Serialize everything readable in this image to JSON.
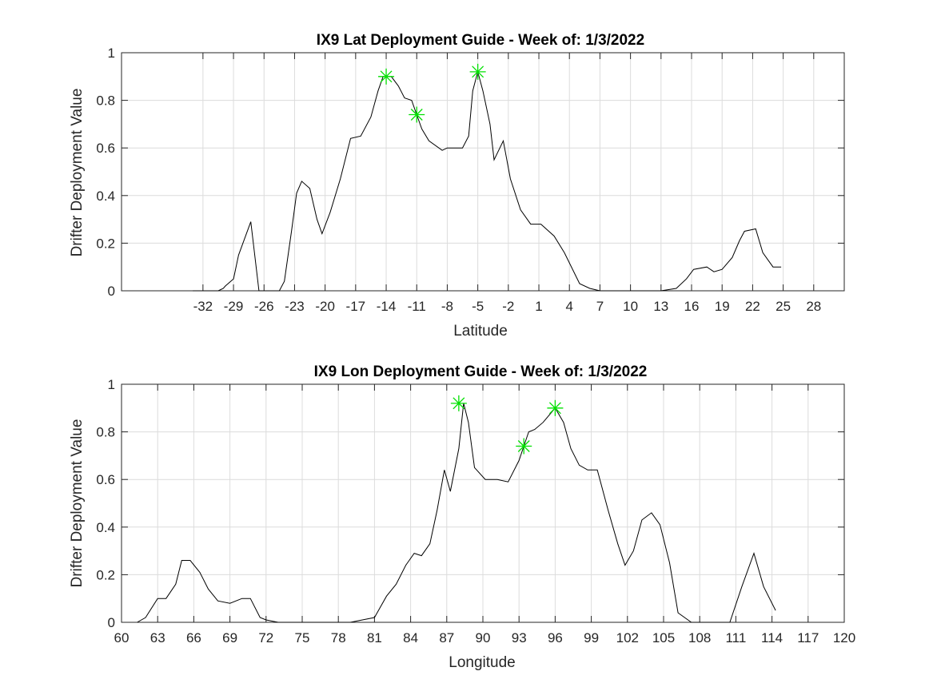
{
  "chart_data": [
    {
      "type": "line",
      "title": "IX9 Lat Deployment Guide - Week of: 1/3/2022",
      "xlabel": "Latitude",
      "ylabel": "Drifter Deployment Value",
      "xlim": [
        -40,
        31
      ],
      "ylim": [
        0,
        1
      ],
      "xticks": [
        -32,
        -29,
        -26,
        -23,
        -20,
        -17,
        -14,
        -11,
        -8,
        -5,
        -2,
        1,
        4,
        7,
        10,
        13,
        16,
        19,
        22,
        25,
        28
      ],
      "xtick_labels": [
        "-32",
        "-29",
        "-26",
        "-23",
        "-20",
        "-17",
        "-14",
        "-11",
        "-8",
        "-5",
        "-2",
        "1",
        "4",
        "7",
        "10",
        "13",
        "16",
        "19",
        "22",
        "25",
        "28"
      ],
      "yticks": [
        0,
        0.2,
        0.4,
        0.6,
        0.8,
        1
      ],
      "ytick_labels": [
        "0",
        "0.2",
        "0.4",
        "0.6",
        "0.8",
        "1"
      ],
      "grid": true,
      "series": [
        {
          "color": "#000000",
          "x": [
            -33,
            -30.5,
            -30,
            -29.8,
            -29,
            -28.5,
            -27.3,
            -26.5,
            -25.5,
            -24.5,
            -24,
            -23.3,
            -22.8,
            -22.3,
            -21.5,
            -20.8,
            -20.3,
            -19.5,
            -18.5,
            -17.5,
            -16.5,
            -15.5,
            -14.8,
            -14.3,
            -13.5,
            -12.8,
            -12.2,
            -11.5,
            -11,
            -10.5,
            -9.8,
            -8.5,
            -8,
            -7.3,
            -6.5,
            -5.9,
            -5.5,
            -5,
            -4.5,
            -3.8,
            -3.4,
            -2.5,
            -1.8,
            -0.8,
            0.2,
            1.2,
            2.5,
            3.5,
            5,
            6,
            7,
            10,
            13,
            14.5,
            15.5,
            16.2,
            17.5,
            18.2,
            19,
            20,
            20.7,
            21.2,
            22.3,
            23,
            24,
            24.8
          ],
          "y": [
            0,
            0,
            0.01,
            0.02,
            0.05,
            0.15,
            0.29,
            0,
            0,
            0,
            0.04,
            0.25,
            0.41,
            0.46,
            0.43,
            0.3,
            0.24,
            0.33,
            0.47,
            0.64,
            0.65,
            0.73,
            0.84,
            0.9,
            0.9,
            0.86,
            0.81,
            0.8,
            0.74,
            0.68,
            0.63,
            0.59,
            0.6,
            0.6,
            0.6,
            0.65,
            0.84,
            0.92,
            0.84,
            0.7,
            0.55,
            0.63,
            0.47,
            0.34,
            0.28,
            0.28,
            0.23,
            0.16,
            0.03,
            0.01,
            0,
            0,
            0,
            0.01,
            0.05,
            0.09,
            0.1,
            0.08,
            0.09,
            0.14,
            0.21,
            0.25,
            0.26,
            0.16,
            0.1,
            0.1
          ]
        }
      ],
      "markers": {
        "style": "asterisk",
        "color": "#00e000",
        "x": [
          -14,
          -11,
          -5
        ],
        "y": [
          0.9,
          0.74,
          0.92
        ]
      }
    },
    {
      "type": "line",
      "title": "IX9 Lon Deployment Guide - Week of: 1/3/2022",
      "xlabel": "Longitude",
      "ylabel": "Drifter Deployment Value",
      "xlim": [
        60,
        120
      ],
      "ylim": [
        0,
        1
      ],
      "xticks": [
        60,
        63,
        66,
        69,
        72,
        75,
        78,
        81,
        84,
        87,
        90,
        93,
        96,
        99,
        102,
        105,
        108,
        111,
        114,
        117,
        120
      ],
      "xtick_labels": [
        "60",
        "63",
        "66",
        "69",
        "72",
        "75",
        "78",
        "81",
        "84",
        "87",
        "90",
        "93",
        "96",
        "99",
        "102",
        "105",
        "108",
        "111",
        "114",
        "117",
        "120"
      ],
      "yticks": [
        0,
        0.2,
        0.4,
        0.6,
        0.8,
        1
      ],
      "ytick_labels": [
        "0",
        "0.2",
        "0.4",
        "0.6",
        "0.8",
        "1"
      ],
      "grid": true,
      "series": [
        {
          "color": "#000000",
          "x": [
            61.3,
            62,
            63,
            63.7,
            64.5,
            65,
            65.7,
            66.5,
            67.2,
            68,
            69,
            70,
            70.7,
            71.5,
            72,
            73,
            74,
            76,
            78,
            79,
            80,
            81,
            82,
            82.8,
            83.6,
            84.3,
            84.9,
            85.6,
            86.2,
            86.8,
            87.3,
            88,
            88.4,
            88.8,
            89.3,
            90.2,
            91.2,
            92.1,
            93,
            93.4,
            93.8,
            94.3,
            95,
            96,
            96.7,
            97.3,
            98,
            98.7,
            99.5,
            100.4,
            101.2,
            101.8,
            102.5,
            103.2,
            104,
            104.7,
            105.5,
            106.2,
            107.3,
            108.5,
            109.5,
            110.5,
            111.5,
            112.5,
            113.3,
            114.3
          ],
          "y": [
            0,
            0.02,
            0.1,
            0.1,
            0.16,
            0.26,
            0.26,
            0.21,
            0.14,
            0.09,
            0.08,
            0.1,
            0.1,
            0.02,
            0.01,
            0,
            0,
            0,
            0,
            0,
            0.01,
            0.02,
            0.11,
            0.16,
            0.24,
            0.29,
            0.28,
            0.33,
            0.47,
            0.64,
            0.55,
            0.73,
            0.92,
            0.84,
            0.65,
            0.6,
            0.6,
            0.59,
            0.68,
            0.74,
            0.8,
            0.81,
            0.84,
            0.9,
            0.84,
            0.73,
            0.66,
            0.64,
            0.64,
            0.47,
            0.33,
            0.24,
            0.3,
            0.43,
            0.46,
            0.41,
            0.25,
            0.04,
            0,
            0,
            0,
            0,
            0.15,
            0.29,
            0.15,
            0.05
          ]
        }
      ],
      "markers": {
        "style": "asterisk",
        "color": "#00e000",
        "x": [
          88,
          93.4,
          96
        ],
        "y": [
          0.92,
          0.74,
          0.9
        ]
      }
    }
  ]
}
